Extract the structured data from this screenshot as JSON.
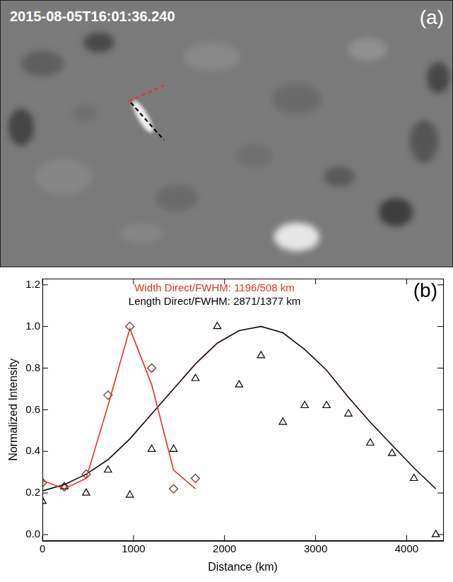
{
  "panel_a": {
    "timestamp": "2015-08-05T16:01:36.240",
    "label": "(a)"
  },
  "chart_data": {
    "type": "scatter",
    "panel_label": "(b)",
    "x_label": "Distance (km)",
    "y_label": "Normalized Intensity",
    "annotations": [
      {
        "text": "Width Direct/FWHM: 1196/508 km",
        "color": "#e8302a"
      },
      {
        "text": "Length Direct/FWHM: 2871/1377 km",
        "color": "#000000"
      }
    ],
    "xlim": [
      0,
      4400
    ],
    "xticks": [
      0,
      1000,
      2000,
      3000,
      4000
    ],
    "ylim": [
      -0.03,
      1.23
    ],
    "yticks": [
      {
        "value": 0,
        "label": "0.0"
      },
      {
        "value": 0.2,
        "label": "0.2"
      },
      {
        "value": 0.4,
        "label": "0.4"
      },
      {
        "value": 0.6,
        "label": "0.6"
      },
      {
        "value": 0.8,
        "label": "0.8"
      },
      {
        "value": 1.0,
        "label": "1.0"
      },
      {
        "value": 1.2,
        "label": "1.2"
      }
    ],
    "grid": false,
    "series": [
      {
        "color": "#e8302a",
        "marker": "none",
        "line_style": "solid",
        "x": [
          0,
          240,
          480,
          720,
          960,
          1200,
          1440,
          1680
        ],
        "values": [
          0.26,
          0.22,
          0.27,
          0.62,
          0.99,
          0.72,
          0.31,
          0.22
        ]
      },
      {
        "color": "#5a3426",
        "marker": "diamond",
        "line_style": "none",
        "x": [
          0,
          240,
          480,
          720,
          960,
          1200,
          1440,
          1680
        ],
        "values": [
          0.25,
          0.23,
          0.29,
          0.67,
          1.0,
          0.8,
          0.22,
          0.27
        ]
      },
      {
        "color": "#1a0505",
        "marker": "none",
        "line_style": "solid",
        "x": [
          0,
          240,
          480,
          720,
          960,
          1200,
          1440,
          1680,
          1920,
          2160,
          2400,
          2640,
          2880,
          3120,
          3360,
          3600,
          3840,
          4080,
          4320
        ],
        "values": [
          0.21,
          0.24,
          0.29,
          0.36,
          0.46,
          0.58,
          0.7,
          0.82,
          0.92,
          0.98,
          1.0,
          0.97,
          0.89,
          0.79,
          0.66,
          0.54,
          0.43,
          0.32,
          0.22
        ]
      },
      {
        "color": "#000000",
        "marker": "triangle",
        "line_style": "none",
        "x": [
          0,
          240,
          480,
          720,
          960,
          1200,
          1440,
          1680,
          1920,
          2160,
          2400,
          2640,
          2880,
          3120,
          3360,
          3600,
          3840,
          4080,
          4320
        ],
        "values": [
          0.16,
          0.23,
          0.2,
          0.31,
          0.19,
          0.41,
          0.41,
          0.75,
          1.0,
          0.72,
          0.86,
          0.54,
          0.62,
          0.62,
          0.58,
          0.44,
          0.39,
          0.27,
          0.0
        ]
      }
    ]
  }
}
